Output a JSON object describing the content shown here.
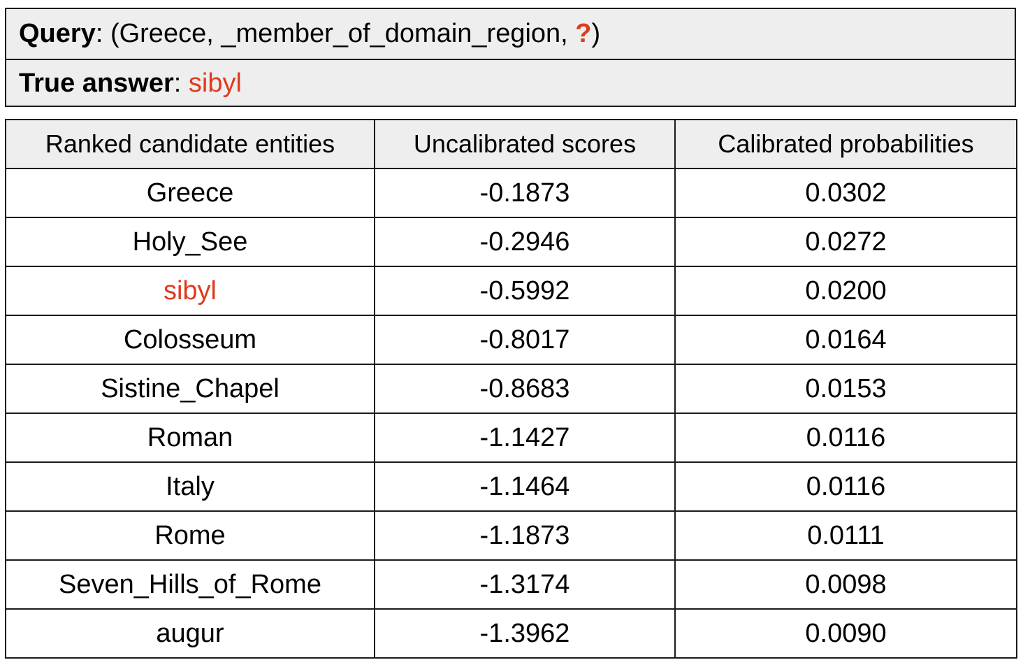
{
  "query": {
    "label": "Query",
    "text_open": ": (Greece, _member_of_domain_region, ",
    "unknown": "?",
    "text_close": ")"
  },
  "true_answer": {
    "label": "True answer",
    "separator": ": ",
    "value": "sibyl"
  },
  "table": {
    "headers": [
      "Ranked candidate entities",
      "Uncalibrated scores",
      "Calibrated probabilities"
    ],
    "rows": [
      {
        "entity": "Greece",
        "score": "-0.1873",
        "prob": "0.0302",
        "correct": false
      },
      {
        "entity": "Holy_See",
        "score": "-0.2946",
        "prob": "0.0272",
        "correct": false
      },
      {
        "entity": "sibyl",
        "score": "-0.5992",
        "prob": "0.0200",
        "correct": true
      },
      {
        "entity": "Colosseum",
        "score": "-0.8017",
        "prob": "0.0164",
        "correct": false
      },
      {
        "entity": "Sistine_Chapel",
        "score": "-0.8683",
        "prob": "0.0153",
        "correct": false
      },
      {
        "entity": "Roman",
        "score": "-1.1427",
        "prob": "0.0116",
        "correct": false
      },
      {
        "entity": "Italy",
        "score": "-1.1464",
        "prob": "0.0116",
        "correct": false
      },
      {
        "entity": "Rome",
        "score": "-1.1873",
        "prob": "0.0111",
        "correct": false
      },
      {
        "entity": "Seven_Hills_of_Rome",
        "score": "-1.3174",
        "prob": "0.0098",
        "correct": false
      },
      {
        "entity": "augur",
        "score": "-1.3962",
        "prob": "0.0090",
        "correct": false
      }
    ]
  },
  "colors": {
    "highlight": "#e03a1e",
    "header_bg": "#eeeeee",
    "border": "#1a1a1a"
  }
}
